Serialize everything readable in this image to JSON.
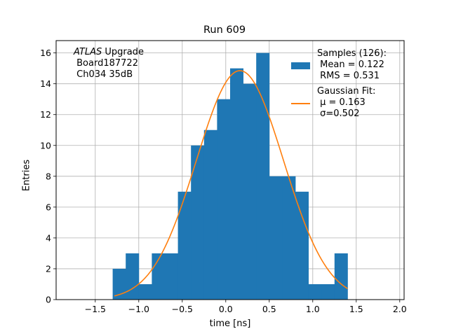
{
  "chart_data": {
    "type": "bar",
    "title": "Run 609",
    "xlabel": "time [ns]",
    "ylabel": "Entries",
    "xlim": [
      -1.95,
      2.05
    ],
    "ylim": [
      0,
      16.8
    ],
    "xticks": [
      -1.5,
      -1.0,
      -0.5,
      0.0,
      0.5,
      1.0,
      1.5,
      2.0
    ],
    "xtick_labels": [
      "−1.5",
      "−1.0",
      "−0.5",
      "0.0",
      "0.5",
      "1.0",
      "1.5",
      "2.0"
    ],
    "yticks": [
      0,
      2,
      4,
      6,
      8,
      10,
      12,
      14,
      16
    ],
    "ytick_labels": [
      "0",
      "2",
      "4",
      "6",
      "8",
      "10",
      "12",
      "14",
      "16"
    ],
    "grid": true,
    "legend_position": "top-right",
    "bin_width": 0.15,
    "bin_start": -1.3,
    "histogram": {
      "name": "Samples (126):",
      "color": "#1f77b4",
      "counts": [
        2,
        3,
        1,
        3,
        3,
        7,
        10,
        11,
        13,
        15,
        14,
        16,
        8,
        8,
        7,
        1,
        1,
        3
      ]
    },
    "fit": {
      "name": "Gaussian Fit:",
      "color": "#ff7f0e",
      "amplitude": 14.85,
      "mu": 0.163,
      "sigma": 0.502,
      "x_range": [
        -1.28,
        1.4
      ]
    },
    "legend": {
      "samples_title": "Samples (126):",
      "samples_mean": " Mean = 0.122",
      "samples_rms": " RMS = 0.531",
      "fit_title": "Gaussian Fit:",
      "fit_mu": " μ = 0.163",
      "fit_sigma": " σ=0.502"
    },
    "annotation": {
      "line1_italic": "ATLAS",
      "line1_rest": " Upgrade",
      "line2": " Board187722",
      "line3": " Ch034 35dB"
    }
  }
}
